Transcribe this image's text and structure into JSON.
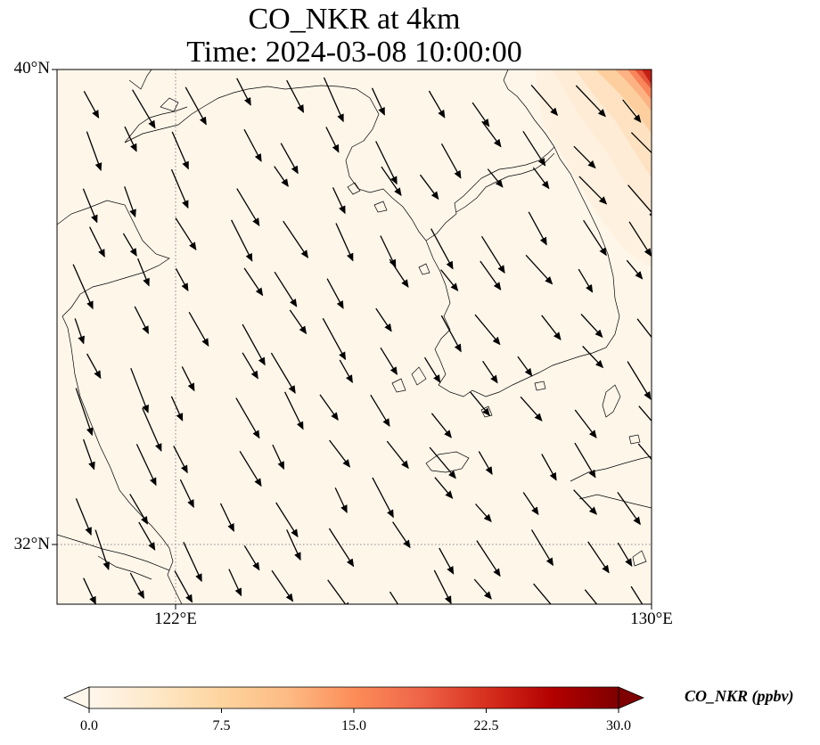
{
  "title": {
    "line1": "CO_NKR at 4km",
    "line2": "Time: 2024-03-08 10:00:00"
  },
  "axes": {
    "lat_ticks": [
      {
        "value": 40,
        "label": "40°N"
      },
      {
        "value": 32,
        "label": "32°N"
      }
    ],
    "lon_ticks": [
      {
        "value": 122,
        "label": "122°E"
      },
      {
        "value": 130,
        "label": "130°E"
      }
    ],
    "lon_range": [
      120,
      130
    ],
    "lat_range": [
      31,
      40
    ],
    "gridlines": "dotted, at labeled ticks"
  },
  "colorbar": {
    "label": "CO_NKR (ppbv)",
    "min": 0,
    "max": 30,
    "ticks": [
      "0.0",
      "7.5",
      "15.0",
      "22.5",
      "30.0"
    ],
    "colormap": "OrRd",
    "colors": [
      "#fff7ec",
      "#fee8c8",
      "#fdd49e",
      "#fdbb84",
      "#fc8d59",
      "#ef6548",
      "#d7301f",
      "#b30000",
      "#7f0000"
    ],
    "extend": "both"
  },
  "field": {
    "background_value": 0.5,
    "hotspot": "north-east corner, values up to ~28 ppbv"
  },
  "wind": {
    "direction": "north-westerly, flow toward south-east",
    "arrow_color": "#000000"
  }
}
